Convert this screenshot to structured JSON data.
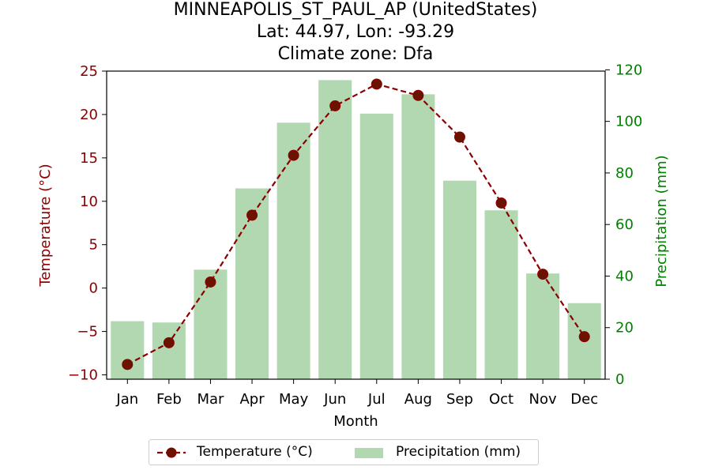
{
  "titles": [
    "MINNEAPOLIS_ST_PAUL_AP (UnitedStates)",
    "Lat: 44.97, Lon: -93.29",
    "Climate zone: Dfa"
  ],
  "colors": {
    "temperature": "#8b0000",
    "temperature_marker": "#6b1300",
    "precipitation": "#b2d8b2",
    "precip_axis": "#008000"
  },
  "chart_data": {
    "type": "bar",
    "title": "MINNEAPOLIS_ST_PAUL_AP (UnitedStates)\nLat: 44.97, Lon: -93.29\nClimate zone: Dfa",
    "xlabel": "Month",
    "categories": [
      "Jan",
      "Feb",
      "Mar",
      "Apr",
      "May",
      "Jun",
      "Jul",
      "Aug",
      "Sep",
      "Oct",
      "Nov",
      "Dec"
    ],
    "series": [
      {
        "name": "Temperature (°C)",
        "type": "line",
        "axis": "left",
        "values": [
          -8.8,
          -6.3,
          0.7,
          8.4,
          15.3,
          21.0,
          23.5,
          22.2,
          17.4,
          9.8,
          1.6,
          -5.6
        ]
      },
      {
        "name": "Precipitation (mm)",
        "type": "bar",
        "axis": "right",
        "values": [
          22.5,
          22,
          42.5,
          74,
          99.5,
          116,
          103,
          110.5,
          77,
          65.5,
          41,
          29.5
        ]
      }
    ],
    "y_left": {
      "label": "Temperature (°C)",
      "ylim": [
        -10.5,
        25
      ],
      "ticks": [
        -10,
        -5,
        0,
        5,
        10,
        15,
        20,
        25
      ],
      "tick_labels": [
        "−10",
        "−5",
        "0",
        "5",
        "10",
        "15",
        "20",
        "25"
      ]
    },
    "y_right": {
      "label": "Precipitation (mm)",
      "ylim": [
        0,
        119.5
      ],
      "ticks": [
        0,
        20,
        40,
        60,
        80,
        100,
        120
      ],
      "tick_labels": [
        "0",
        "20",
        "40",
        "60",
        "80",
        "100",
        "120"
      ]
    },
    "grid": false,
    "legend_position": "bottom-center"
  }
}
